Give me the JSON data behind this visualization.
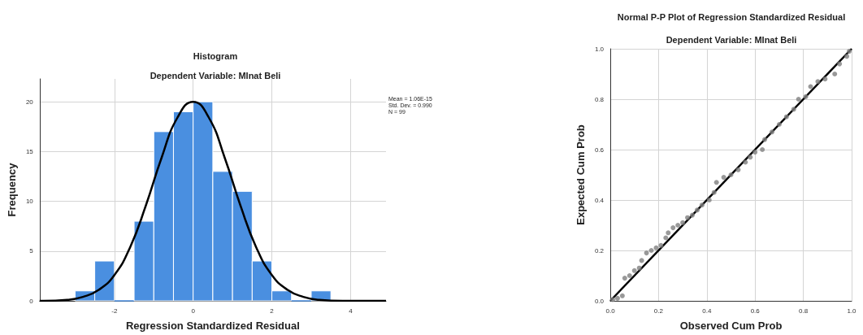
{
  "chart_data": [
    {
      "type": "histogram",
      "title": "Histogram",
      "subtitle": "Dependent Variable: MInat Beli",
      "xlabel": "Regression Standardized Residual",
      "ylabel": "Frequency",
      "bins": [
        -3,
        -2.5,
        -2,
        -1.5,
        -1,
        -0.5,
        0,
        0.5,
        1,
        1.5,
        2,
        2.5,
        3,
        3.5
      ],
      "values": [
        1,
        4,
        0,
        8,
        17,
        19,
        20,
        13,
        11,
        4,
        1,
        0,
        1
      ],
      "color": "#4a8fe0",
      "xlim": [
        -3.9,
        4.9
      ],
      "xticks": [
        -2,
        0,
        2,
        4
      ],
      "ylim": [
        0,
        22.3
      ],
      "yticks": [
        0,
        5,
        10,
        15,
        20
      ],
      "grid": true,
      "annotations": [
        "Mean = 1.06E-15",
        "Std. Dev. = 0.990",
        "N = 99"
      ],
      "series": [
        {
          "type": "line",
          "marker": "none",
          "color": "#000000",
          "x": [
            -3.9,
            -3.8,
            -3.2,
            -2.8,
            -2.4,
            -2,
            -1.6,
            -1.2,
            -0.8,
            -0.4,
            0,
            0.4,
            0.8,
            1.2,
            1.6,
            2,
            2.4,
            2.8,
            3.2,
            3.8,
            4.4,
            4.9
          ],
          "values": [
            0,
            0,
            0.1,
            0.4,
            1.1,
            2.6,
            5.4,
            9.6,
            14.4,
            18.4,
            20,
            18.4,
            14.4,
            9.6,
            5.4,
            2.6,
            1.1,
            0.4,
            0.1,
            0,
            0,
            0
          ]
        }
      ]
    },
    {
      "type": "scatter",
      "title": "Normal P-P Plot of Regression Standardized Residual",
      "subtitle": "Dependent Variable: MInat Beli",
      "xlabel": "Observed Cum Prob",
      "ylabel": "Expected Cum Prob",
      "xlim": [
        0,
        1
      ],
      "ylim": [
        0,
        1
      ],
      "xticks": [
        {
          "value": 0,
          "label": "0.0"
        },
        0.2,
        0.4,
        0.6,
        0.8,
        {
          "value": 1,
          "label": "1.0"
        }
      ],
      "yticks": [
        {
          "value": 0,
          "label": "0.0"
        },
        0.2,
        0.4,
        0.6,
        0.8,
        {
          "value": 1,
          "label": "1.0"
        }
      ],
      "grid": true,
      "marker": "circle",
      "series": [
        {
          "color": "#808080",
          "x": [
            0.01,
            0.03,
            0.05,
            0.06,
            0.08,
            0.1,
            0.12,
            0.13,
            0.15,
            0.17,
            0.19,
            0.21,
            0.23,
            0.24,
            0.26,
            0.28,
            0.3,
            0.32,
            0.34,
            0.36,
            0.38,
            0.41,
            0.43,
            0.44,
            0.47,
            0.5,
            0.53,
            0.56,
            0.58,
            0.6,
            0.63,
            0.64,
            0.67,
            0.7,
            0.73,
            0.76,
            0.78,
            0.81,
            0.83,
            0.86,
            0.89,
            0.93,
            0.95,
            0.98,
            0.99
          ],
          "values": [
            0.005,
            0.01,
            0.02,
            0.09,
            0.1,
            0.12,
            0.13,
            0.16,
            0.19,
            0.2,
            0.21,
            0.22,
            0.25,
            0.27,
            0.29,
            0.3,
            0.31,
            0.33,
            0.34,
            0.36,
            0.38,
            0.4,
            0.43,
            0.47,
            0.49,
            0.5,
            0.52,
            0.55,
            0.57,
            0.59,
            0.6,
            0.64,
            0.67,
            0.7,
            0.73,
            0.76,
            0.8,
            0.81,
            0.85,
            0.87,
            0.88,
            0.9,
            0.94,
            0.97,
            0.99
          ]
        },
        {
          "type": "line",
          "marker": "none",
          "color": "#000000",
          "x": [
            0,
            1
          ],
          "values": [
            0,
            1
          ]
        }
      ]
    }
  ]
}
